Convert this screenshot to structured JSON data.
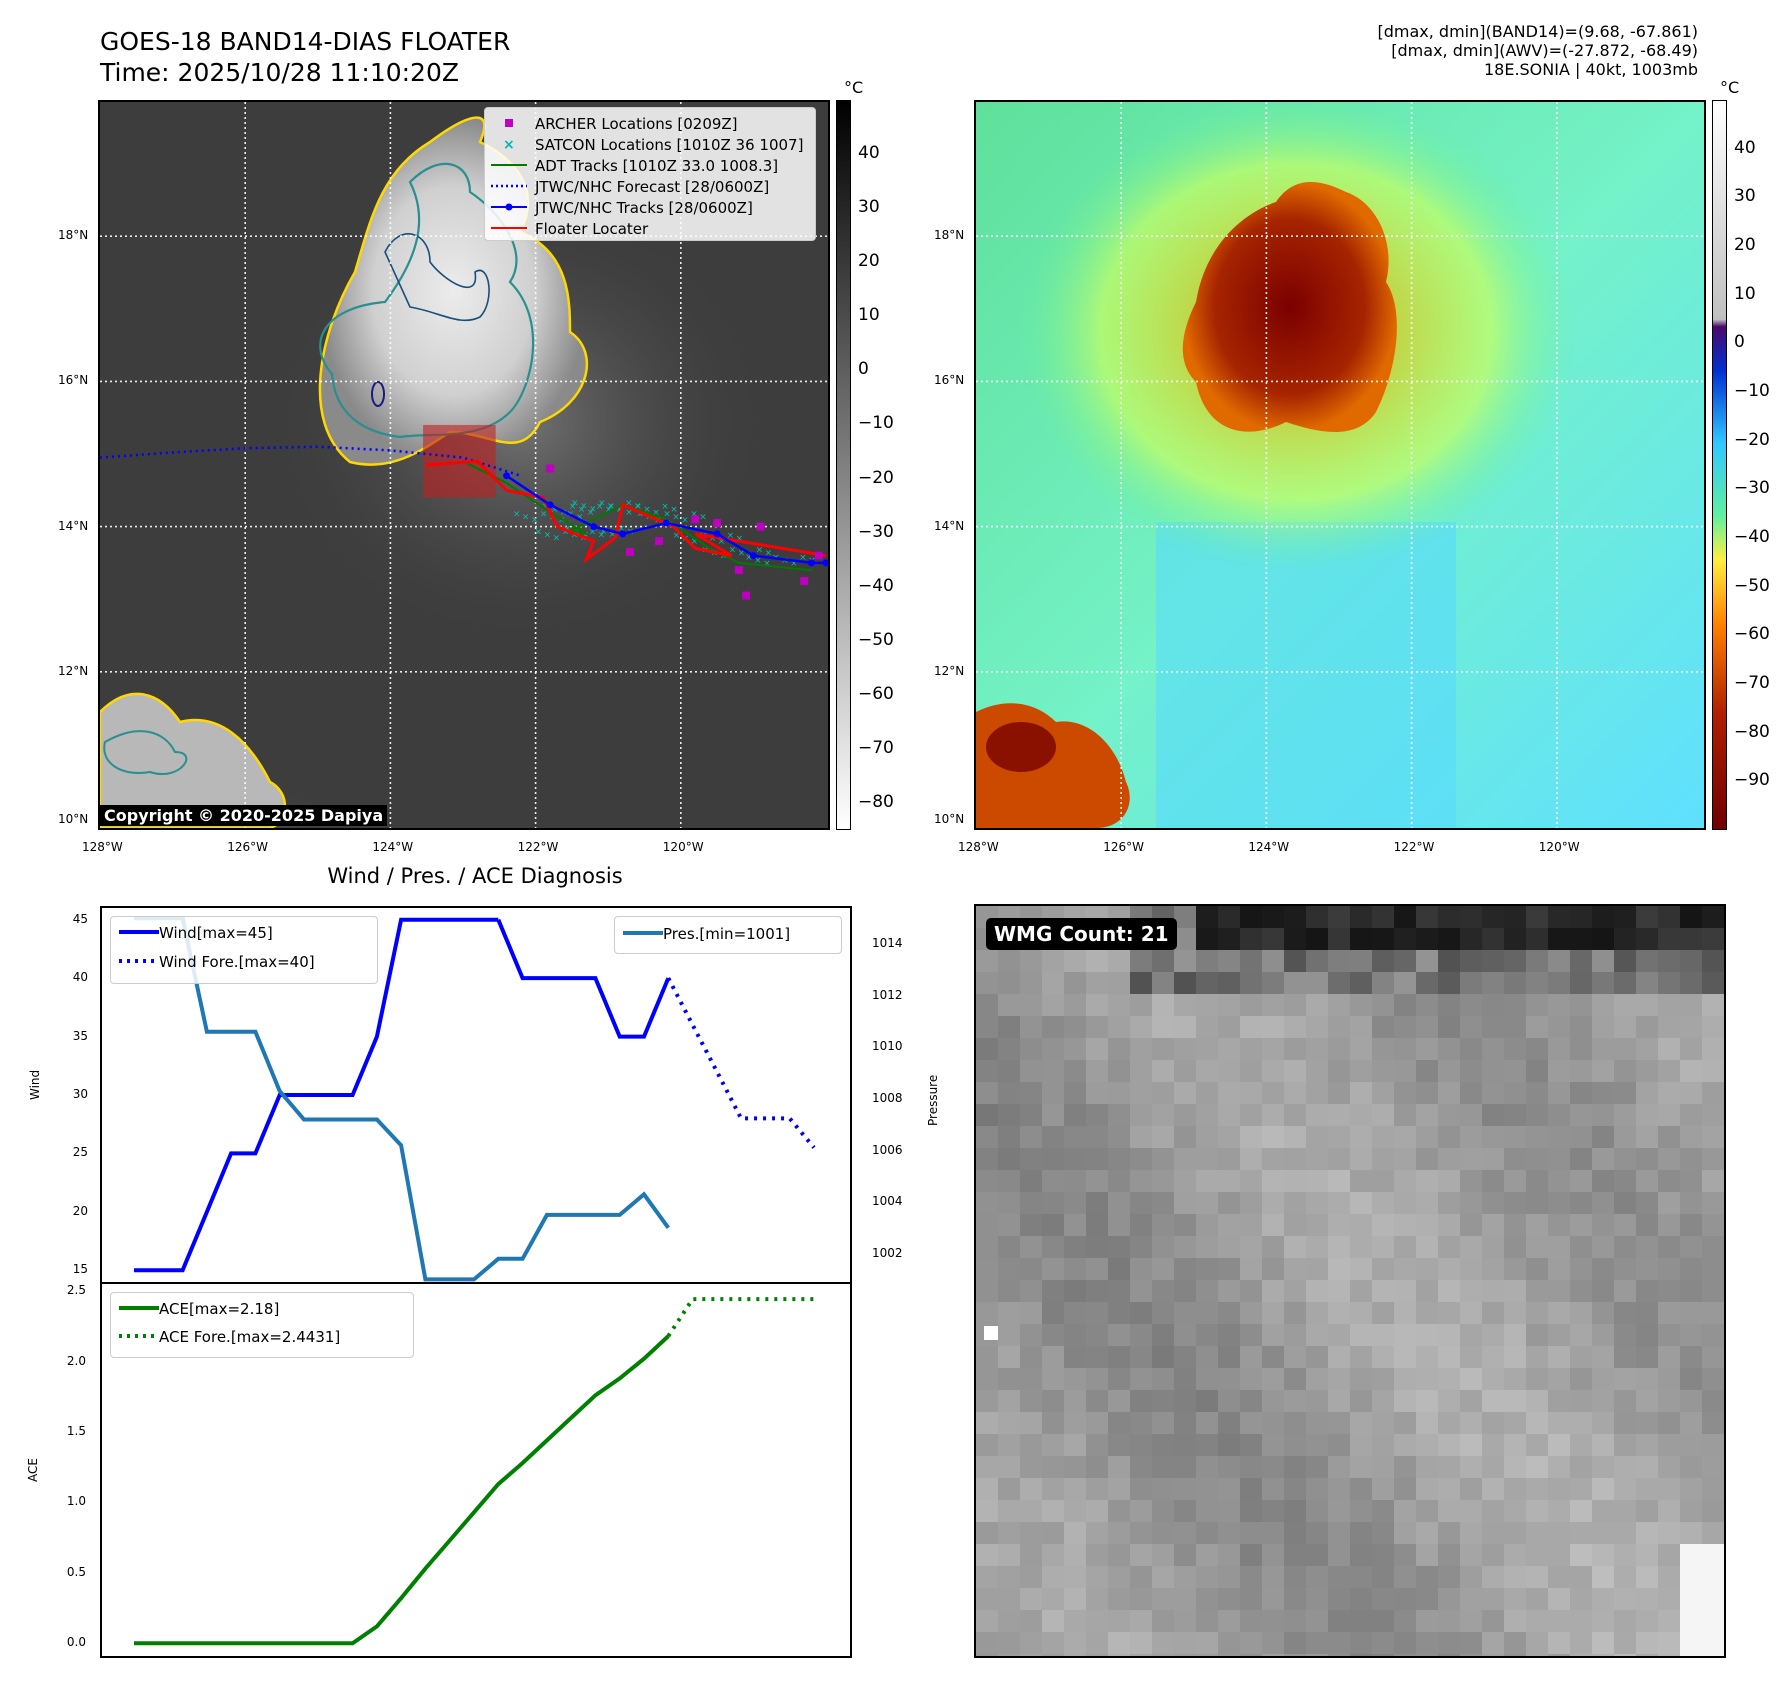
{
  "header": {
    "title": "GOES-18 BAND14-DIAS FLOATER",
    "time": "Time: 2025/10/28 11:10:20Z",
    "info_line1": "[dmax, dmin](BAND14)=(9.68, -67.861)",
    "info_line2": "[dmax, dmin](AWV)=(-27.872, -68.49)",
    "info_line3": "18E.SONIA | 40kt, 1003mb"
  },
  "map": {
    "lon_ticks": [
      "128°W",
      "126°W",
      "124°W",
      "122°W",
      "120°W"
    ],
    "lat_ticks": [
      "18°N",
      "16°N",
      "14°N",
      "12°N",
      "10°N"
    ],
    "lon_range": [
      -128,
      -118
    ],
    "lat_range": [
      10,
      20
    ],
    "copyright": "Copyright © 2020-2025 Dapiya"
  },
  "legend_map": [
    {
      "label": "ARCHER Locations [0209Z]",
      "color": "#c000c0",
      "style": "square"
    },
    {
      "label": "SATCON Locations [1010Z 36 1007]",
      "color": "#00b8b0",
      "style": "x"
    },
    {
      "label": "ADT Tracks [1010Z 33.0 1008.3]",
      "color": "#007a00",
      "style": "line"
    },
    {
      "label": "JTWC/NHC Forecast [28/0600Z]",
      "color": "#0000ff",
      "style": "dotted"
    },
    {
      "label": "JTWC/NHC Tracks [28/0600Z]",
      "color": "#0000ff",
      "style": "line-dot"
    },
    {
      "label": "Floater Locater",
      "color": "#ff0000",
      "style": "line"
    }
  ],
  "colorbar1": {
    "unit": "°C",
    "ticks": [
      "40",
      "30",
      "20",
      "10",
      "0",
      "−10",
      "−20",
      "−30",
      "−40",
      "−50",
      "−60",
      "−70",
      "−80"
    ],
    "range": [
      -85,
      50
    ]
  },
  "colorbar2": {
    "unit": "°C",
    "ticks": [
      "40",
      "30",
      "20",
      "10",
      "0",
      "−10",
      "−20",
      "−30",
      "−40",
      "−50",
      "−60",
      "−70",
      "−80",
      "−90"
    ],
    "range": [
      -100,
      50
    ]
  },
  "tracks": {
    "forecast": [
      [
        -128,
        14.95
      ],
      [
        -127,
        15.02
      ],
      [
        -126,
        15.08
      ],
      [
        -125,
        15.1
      ],
      [
        -124,
        15.05
      ],
      [
        -123,
        14.95
      ],
      [
        -122.2,
        14.7
      ]
    ],
    "jtwc": [
      [
        -122.4,
        14.7
      ],
      [
        -121.8,
        14.3
      ],
      [
        -121.2,
        14.0
      ],
      [
        -120.8,
        13.9
      ],
      [
        -120.2,
        14.05
      ],
      [
        -119.5,
        13.9
      ],
      [
        -119.0,
        13.6
      ],
      [
        -118.2,
        13.5
      ],
      [
        -118,
        13.5
      ]
    ],
    "archer": [
      [
        -121.8,
        14.8
      ],
      [
        -120.7,
        13.65
      ],
      [
        -120.3,
        13.8
      ],
      [
        -119.8,
        14.1
      ],
      [
        -119.5,
        14.05
      ],
      [
        -119.2,
        13.4
      ],
      [
        -119.1,
        13.05
      ],
      [
        -118.9,
        14.0
      ],
      [
        -118.3,
        13.25
      ],
      [
        -118.1,
        13.6
      ]
    ],
    "floater_box": {
      "lon_min": -123.55,
      "lon_max": -122.55,
      "lat_min": 14.4,
      "lat_max": 15.4
    }
  },
  "diagnosis": {
    "title": "Wind / Pres. / ACE Diagnosis",
    "wind_ylabel": "Wind",
    "pres_ylabel": "Pressure",
    "ace_ylabel": "ACE",
    "legend_wind": "Wind[max=45]",
    "legend_wind_fore": "Wind Fore.[max=40]",
    "legend_pres": "Pres.[min=1001]",
    "legend_ace": "ACE[max=2.18]",
    "legend_ace_fore": "ACE Fore.[max=2.4431]",
    "wind_ticks": [
      "45",
      "40",
      "35",
      "30",
      "25",
      "20",
      "15"
    ],
    "pres_ticks": [
      "1014",
      "1012",
      "1010",
      "1008",
      "1006",
      "1004",
      "1002"
    ],
    "ace_ticks": [
      "2.5",
      "2.0",
      "1.5",
      "1.0",
      "0.5",
      "0.0"
    ]
  },
  "chart_data": [
    {
      "type": "line",
      "title": "Wind / Pres. / ACE Diagnosis",
      "ylabel": "Wind",
      "ylim": [
        14,
        46
      ],
      "x": [
        0,
        1,
        2,
        3,
        4,
        5,
        6,
        7,
        8,
        9,
        10,
        11,
        12,
        13,
        14,
        15,
        16,
        17,
        18,
        19,
        20,
        21,
        22
      ],
      "series": [
        {
          "name": "Wind[max=45]",
          "color": "#0000ff",
          "style": "solid",
          "x": [
            0,
            1,
            2,
            3,
            4,
            5,
            6,
            7,
            8,
            9,
            10,
            11,
            12,
            13,
            14,
            15
          ],
          "values": [
            15,
            15,
            15,
            20,
            25,
            25,
            30,
            30,
            30,
            30,
            35,
            45,
            45,
            45,
            45,
            45
          ]
        },
        {
          "name": "Wind[max=45] cont",
          "color": "#0000ff",
          "style": "solid",
          "x": [
            15,
            16,
            17,
            18,
            19,
            20,
            21,
            22
          ],
          "values": [
            45,
            40,
            40,
            40,
            40,
            35,
            35,
            40
          ]
        },
        {
          "name": "Wind Fore.[max=40]",
          "color": "#0000ff",
          "style": "dotted",
          "x": [
            22,
            23,
            24,
            25,
            26,
            27,
            28
          ],
          "values": [
            40,
            36,
            32,
            28,
            28,
            28,
            25.5
          ]
        }
      ]
    },
    {
      "type": "line",
      "ylabel": "Pressure",
      "ylim": [
        1000.9,
        1015.4
      ],
      "series": [
        {
          "name": "Pres.[min=1001]",
          "color": "#1f77b4",
          "style": "solid",
          "x": [
            0,
            1,
            2,
            3,
            4,
            5,
            6,
            7,
            8,
            9,
            10,
            11,
            12,
            13,
            14,
            15,
            16,
            17,
            18,
            19,
            20,
            21,
            22
          ],
          "values": [
            1015,
            1015,
            1015,
            1010.6,
            1010.6,
            1010.6,
            1008.3,
            1007.2,
            1007.2,
            1007.2,
            1007.2,
            1006.2,
            1001,
            1001,
            1001,
            1001.8,
            1001.8,
            1003.5,
            1003.5,
            1003.5,
            1003.5,
            1004.3,
            1003
          ]
        }
      ]
    },
    {
      "type": "line",
      "ylabel": "ACE",
      "ylim": [
        -0.09,
        2.55
      ],
      "series": [
        {
          "name": "ACE[max=2.18]",
          "color": "#008000",
          "style": "solid",
          "x": [
            0,
            1,
            2,
            3,
            4,
            5,
            6,
            7,
            8,
            9,
            10,
            11,
            12,
            13,
            14,
            15,
            16,
            17,
            18,
            19,
            20,
            21,
            22
          ],
          "values": [
            0,
            0,
            0,
            0,
            0,
            0,
            0,
            0,
            0,
            0,
            0.12,
            0.32,
            0.53,
            0.73,
            0.93,
            1.13,
            1.28,
            1.44,
            1.6,
            1.76,
            1.88,
            2.02,
            2.18
          ]
        },
        {
          "name": "ACE Fore.[max=2.4431]",
          "color": "#008000",
          "style": "dotted",
          "x": [
            22,
            23,
            24,
            25,
            26,
            27,
            28
          ],
          "values": [
            2.18,
            2.4431,
            2.4431,
            2.4431,
            2.4431,
            2.4431,
            2.4431
          ]
        }
      ]
    }
  ],
  "wmg": {
    "label": "WMG Count: 21"
  }
}
